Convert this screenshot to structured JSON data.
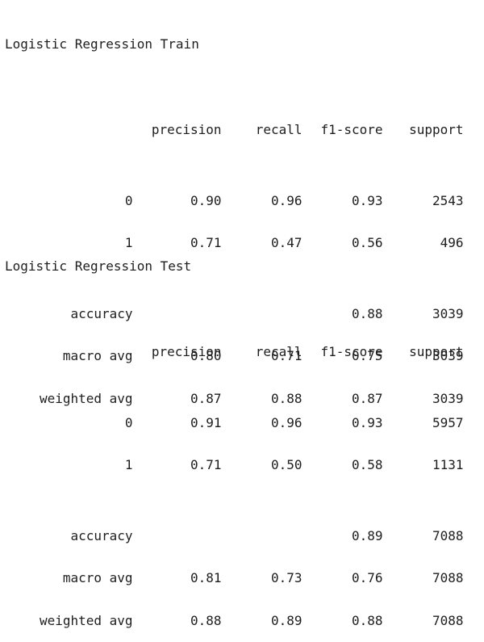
{
  "reports": [
    {
      "title": "Logistic Regression Train",
      "headers": {
        "precision": "precision",
        "recall": "recall",
        "f1": "f1-score",
        "support": "support"
      },
      "class_rows": [
        {
          "label": "0",
          "precision": "0.90",
          "recall": "0.96",
          "f1": "0.93",
          "support": "2543"
        },
        {
          "label": "1",
          "precision": "0.71",
          "recall": "0.47",
          "f1": "0.56",
          "support": "496"
        }
      ],
      "summary_rows": [
        {
          "label": "accuracy",
          "precision": "",
          "recall": "",
          "f1": "0.88",
          "support": "3039"
        },
        {
          "label": "macro avg",
          "precision": "0.80",
          "recall": "0.71",
          "f1": "0.75",
          "support": "3039"
        },
        {
          "label": "weighted avg",
          "precision": "0.87",
          "recall": "0.88",
          "f1": "0.87",
          "support": "3039"
        }
      ]
    },
    {
      "title": "Logistic Regression Test",
      "headers": {
        "precision": "precision",
        "recall": "recall",
        "f1": "f1-score",
        "support": "support"
      },
      "class_rows": [
        {
          "label": "0",
          "precision": "0.91",
          "recall": "0.96",
          "f1": "0.93",
          "support": "5957"
        },
        {
          "label": "1",
          "precision": "0.71",
          "recall": "0.50",
          "f1": "0.58",
          "support": "1131"
        }
      ],
      "summary_rows": [
        {
          "label": "accuracy",
          "precision": "",
          "recall": "",
          "f1": "0.89",
          "support": "7088"
        },
        {
          "label": "macro avg",
          "precision": "0.81",
          "recall": "0.73",
          "f1": "0.76",
          "support": "7088"
        },
        {
          "label": "weighted avg",
          "precision": "0.88",
          "recall": "0.89",
          "f1": "0.88",
          "support": "7088"
        }
      ]
    }
  ]
}
